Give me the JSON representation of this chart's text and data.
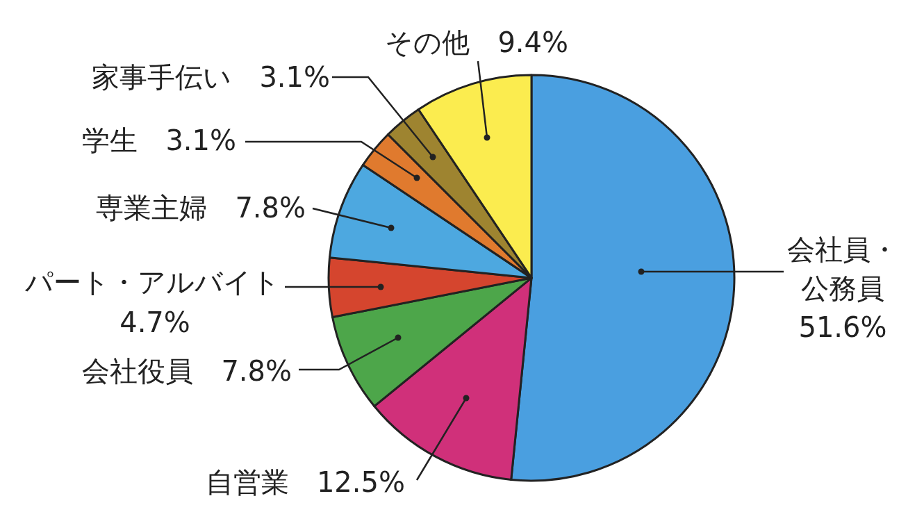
{
  "chart_data": {
    "type": "pie",
    "categories": [
      "会社員・公務員",
      "自営業",
      "会社役員",
      "パート・アルバイト",
      "専業主婦",
      "学生",
      "家事手伝い",
      "その他"
    ],
    "values": [
      51.6,
      12.5,
      7.8,
      4.7,
      7.8,
      3.1,
      3.1,
      9.4
    ],
    "value_labels": [
      "51.6%",
      "12.5%",
      "7.8%",
      "4.7%",
      "7.8%",
      "3.1%",
      "3.1%",
      "9.4%"
    ],
    "colors": [
      "#4a9fe0",
      "#d0307a",
      "#4da64a",
      "#d5452e",
      "#4da8e0",
      "#e07a2e",
      "#9e8430",
      "#fbec4f"
    ]
  }
}
